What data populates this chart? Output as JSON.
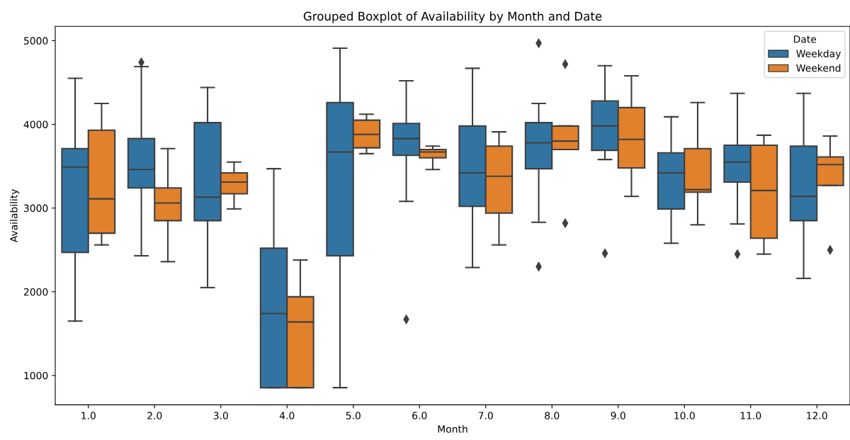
{
  "chart_data": {
    "type": "box",
    "title": "Grouped Boxplot of Availability by Month and Date",
    "xlabel": "Month",
    "ylabel": "Availability",
    "legend_title": "Date",
    "legend": "top right",
    "grid": false,
    "categories": [
      "1.0",
      "2.0",
      "3.0",
      "4.0",
      "5.0",
      "6.0",
      "7.0",
      "8.0",
      "9.0",
      "10.0",
      "11.0",
      "12.0"
    ],
    "ylim": [
      650,
      5170
    ],
    "yticks": [
      1000,
      2000,
      3000,
      4000,
      5000
    ],
    "series": [
      {
        "name": "Weekday",
        "color": "#3274a1",
        "boxes": [
          {
            "low": 1650,
            "q1": 2470,
            "median": 3490,
            "q3": 3710,
            "high": 4550
          },
          {
            "low": 2430,
            "q1": 3240,
            "median": 3460,
            "q3": 3830,
            "high": 4690,
            "outliers": [
              4740
            ]
          },
          {
            "low": 2050,
            "q1": 2850,
            "median": 3130,
            "q3": 4020,
            "high": 4440
          },
          {
            "low": 855,
            "q1": 855,
            "median": 1740,
            "q3": 2520,
            "high": 3470
          },
          {
            "low": 855,
            "q1": 2430,
            "median": 3670,
            "q3": 4260,
            "high": 4910
          },
          {
            "low": 3080,
            "q1": 3630,
            "median": 3830,
            "q3": 4010,
            "high": 4520,
            "outliers": [
              1670
            ]
          },
          {
            "low": 2290,
            "q1": 3020,
            "median": 3420,
            "q3": 3980,
            "high": 4670
          },
          {
            "low": 2830,
            "q1": 3470,
            "median": 3780,
            "q3": 4020,
            "high": 4250,
            "outliers": [
              4970,
              2300
            ]
          },
          {
            "low": 3580,
            "q1": 3690,
            "median": 3980,
            "q3": 4280,
            "high": 4700,
            "outliers": [
              2460
            ]
          },
          {
            "low": 2580,
            "q1": 2990,
            "median": 3420,
            "q3": 3660,
            "high": 4090
          },
          {
            "low": 2810,
            "q1": 3310,
            "median": 3550,
            "q3": 3750,
            "high": 4370,
            "outliers": [
              2450
            ]
          },
          {
            "low": 2160,
            "q1": 2850,
            "median": 3140,
            "q3": 3740,
            "high": 4370
          }
        ]
      },
      {
        "name": "Weekend",
        "color": "#e1812c",
        "boxes": [
          {
            "low": 2560,
            "q1": 2700,
            "median": 3110,
            "q3": 3930,
            "high": 4250
          },
          {
            "low": 2360,
            "q1": 2850,
            "median": 3060,
            "q3": 3240,
            "high": 3710
          },
          {
            "low": 2990,
            "q1": 3170,
            "median": 3310,
            "q3": 3420,
            "high": 3550
          },
          {
            "low": 855,
            "q1": 855,
            "median": 1640,
            "q3": 1940,
            "high": 2380
          },
          {
            "low": 3650,
            "q1": 3720,
            "median": 3880,
            "q3": 4050,
            "high": 4120
          },
          {
            "low": 3460,
            "q1": 3600,
            "median": 3670,
            "q3": 3700,
            "high": 3740
          },
          {
            "low": 2560,
            "q1": 2940,
            "median": 3380,
            "q3": 3740,
            "high": 3910
          },
          {
            "low": 3700,
            "q1": 3700,
            "median": 3800,
            "q3": 3980,
            "high": 3980,
            "outliers": [
              4720,
              2820
            ]
          },
          {
            "low": 3140,
            "q1": 3480,
            "median": 3820,
            "q3": 4200,
            "high": 4580
          },
          {
            "low": 2800,
            "q1": 3190,
            "median": 3220,
            "q3": 3710,
            "high": 4260
          },
          {
            "low": 2450,
            "q1": 2640,
            "median": 3210,
            "q3": 3750,
            "high": 3870
          },
          {
            "low": 3270,
            "q1": 3270,
            "median": 3520,
            "q3": 3610,
            "high": 3860,
            "outliers": [
              2500
            ]
          }
        ]
      }
    ]
  }
}
